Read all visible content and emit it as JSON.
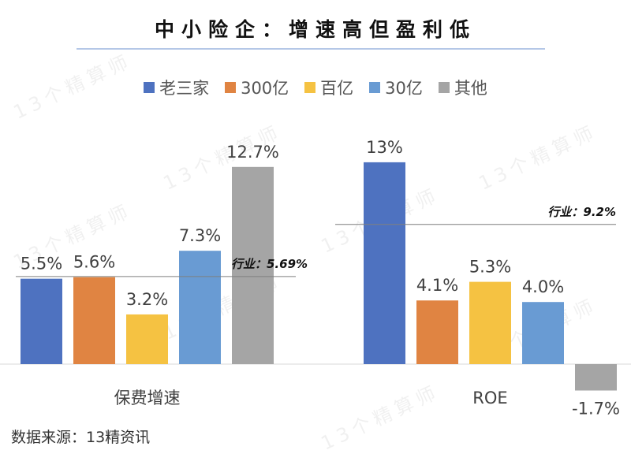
{
  "watermark": "13个精算师",
  "source": "数据来源：13精资讯",
  "chart_data": {
    "type": "bar",
    "title": "中小险企：增速高但盈利低",
    "categories": [
      "保费增速",
      "ROE"
    ],
    "series": [
      {
        "name": "老三家",
        "color": "#4e72c0",
        "values": [
          5.5,
          13
        ],
        "labels": [
          "5.5%",
          "13%"
        ]
      },
      {
        "name": "300亿",
        "color": "#e08442",
        "values": [
          5.6,
          4.1
        ],
        "labels": [
          "5.6%",
          "4.1%"
        ]
      },
      {
        "name": "百亿",
        "color": "#f5c242",
        "values": [
          3.2,
          5.3
        ],
        "labels": [
          "3.2%",
          "5.3%"
        ]
      },
      {
        "name": "30亿",
        "color": "#699bd3",
        "values": [
          7.3,
          4.0
        ],
        "labels": [
          "7.3%",
          "4.0%"
        ]
      },
      {
        "name": "其他",
        "color": "#a5a5a5",
        "values": [
          12.7,
          -1.7
        ],
        "labels": [
          "12.7%",
          "-1.7%"
        ]
      }
    ],
    "reference_lines": [
      {
        "category": "保费增速",
        "value": 5.69,
        "label": "行业：5.69%"
      },
      {
        "category": "ROE",
        "value": 9.2,
        "label": "行业：9.2%"
      }
    ],
    "legend": "top",
    "grid": false,
    "unit": "%"
  }
}
